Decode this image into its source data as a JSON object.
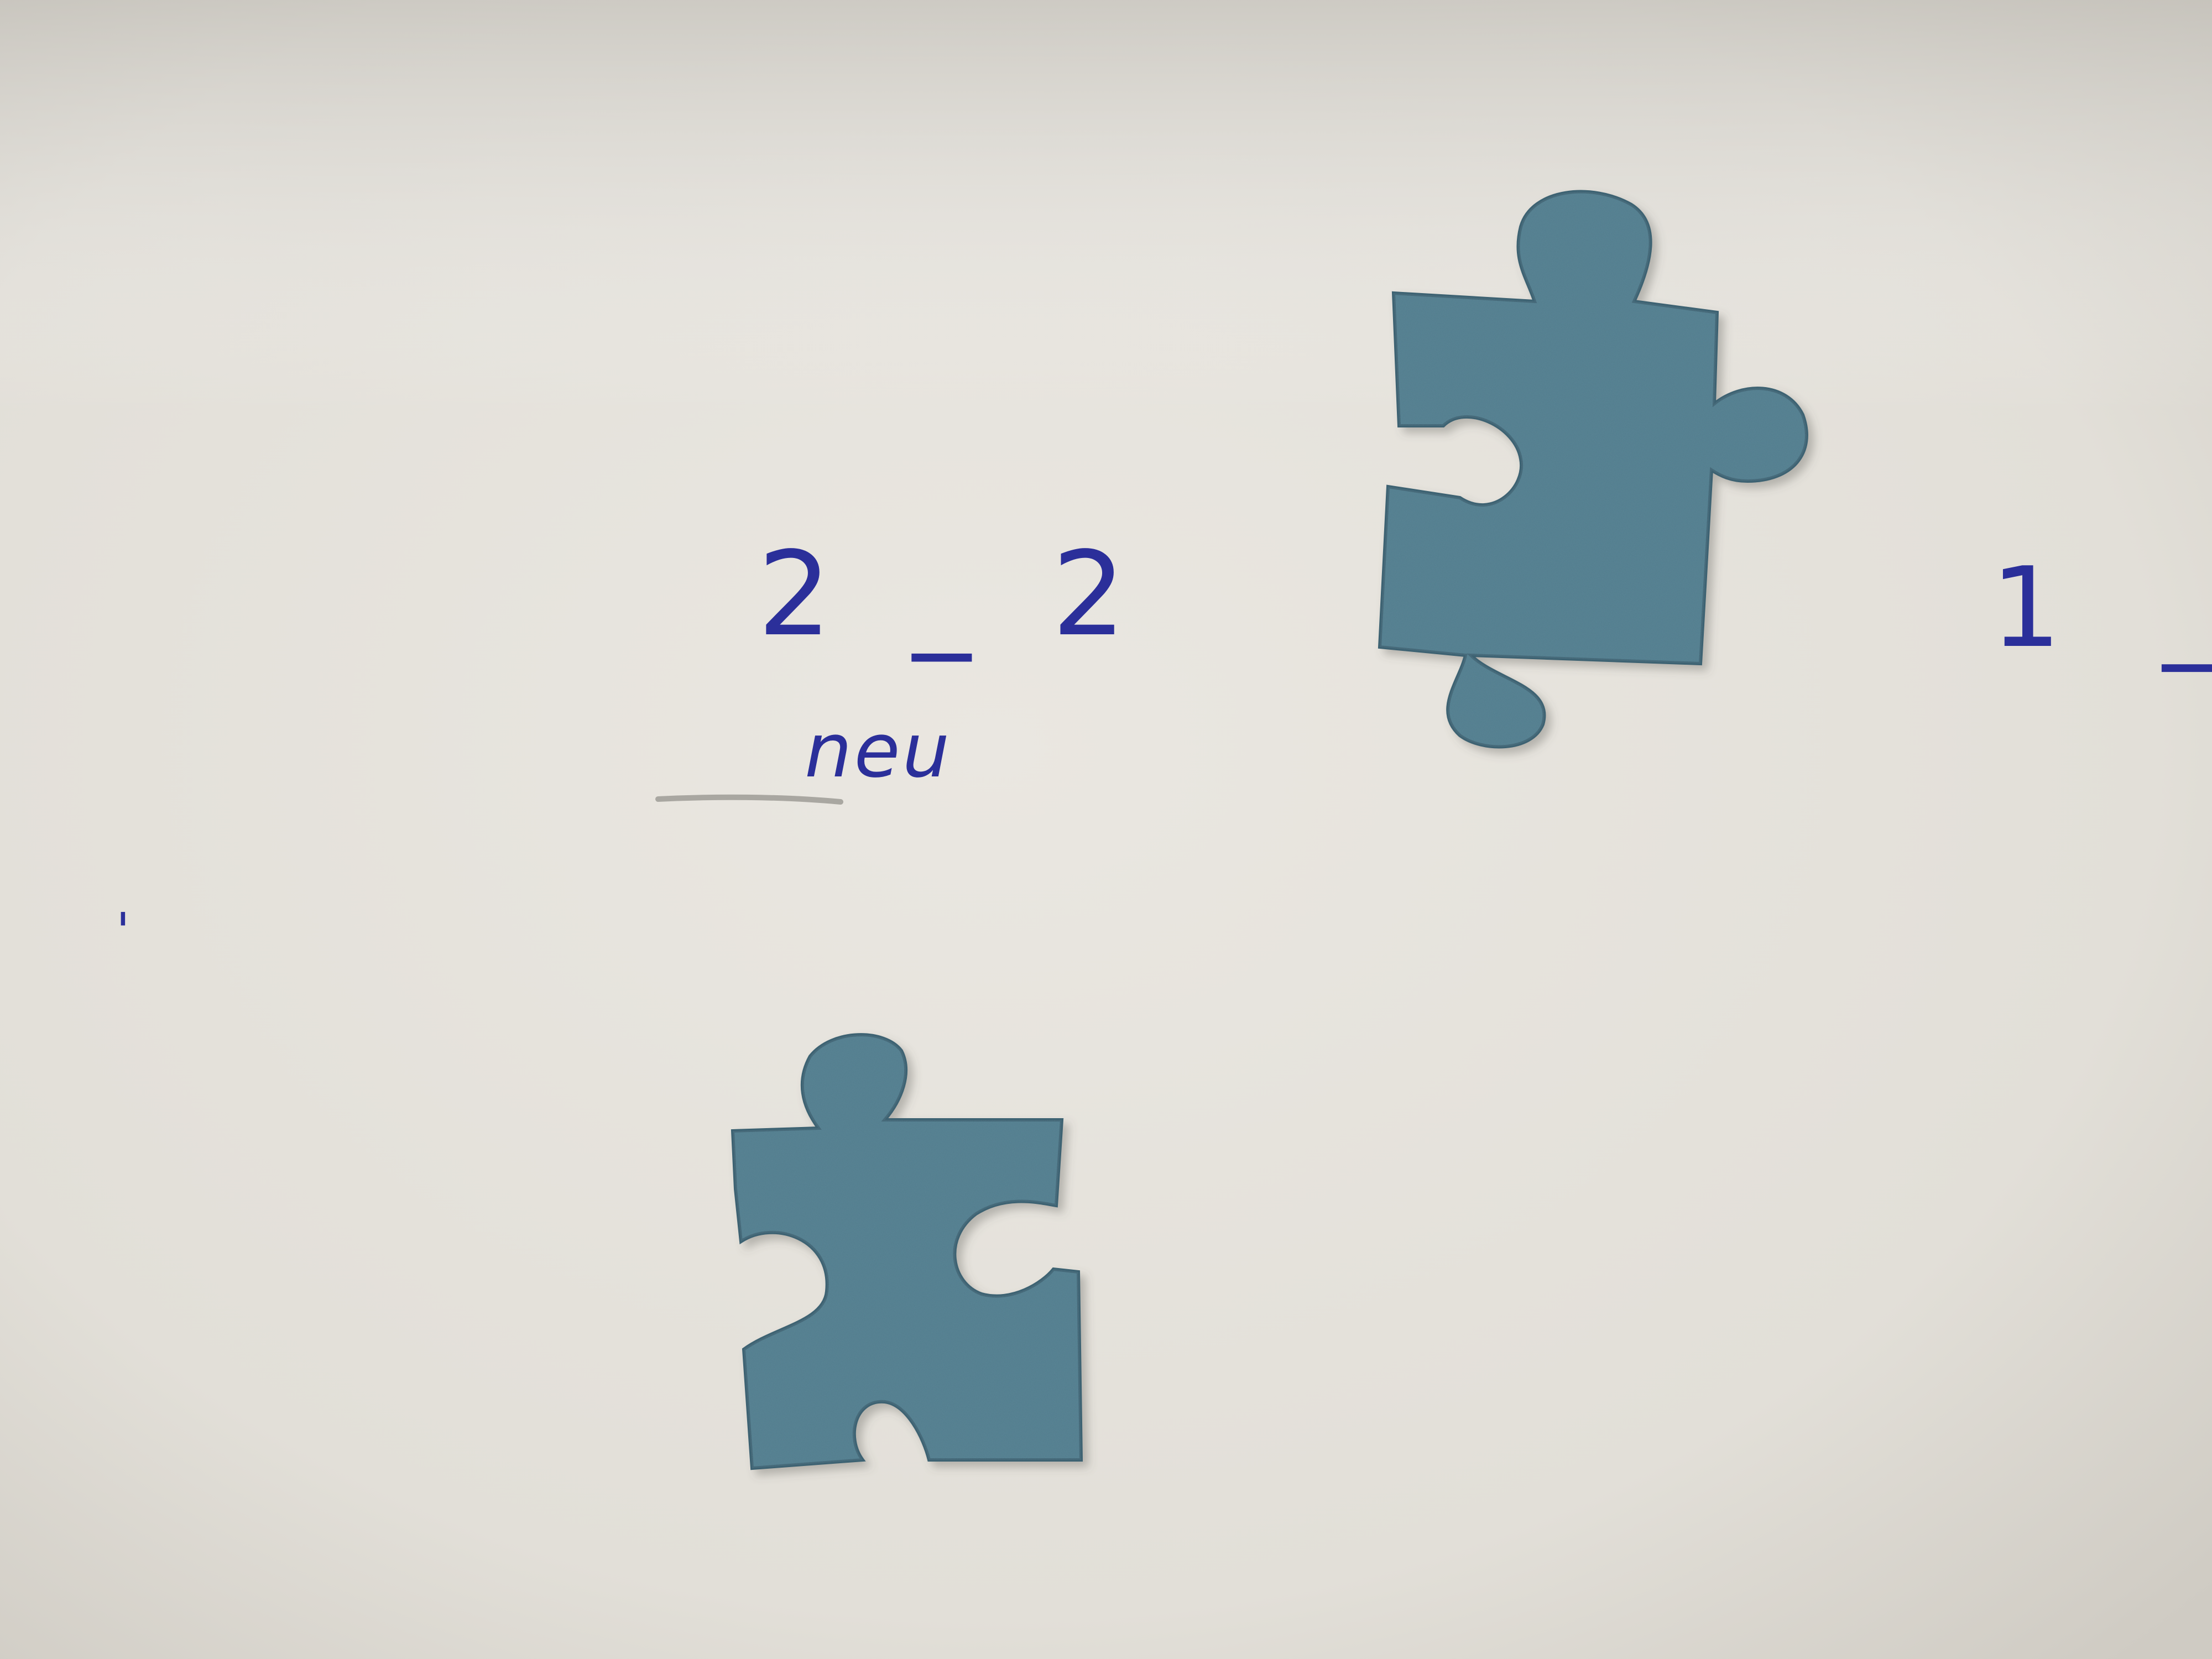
{
  "scene": {
    "kind": "photo",
    "description_colors": {
      "paper": "#e7e4dd",
      "paper_shadow": "#cfcbc3",
      "piece_fill": "#4f7b8c",
      "piece_edge": "#3d6272",
      "ink": "#2b2f9a",
      "pencil": "#9a9893"
    }
  },
  "handwriting": {
    "label_a": "2 _ 2",
    "label_a_note": "neu",
    "label_b": "1 _",
    "stray_mark": "'"
  },
  "objects": [
    {
      "name": "puzzle-piece-upper-right",
      "color": "#4f7b8c"
    },
    {
      "name": "puzzle-piece-lower-left",
      "color": "#4f7b8c"
    }
  ]
}
